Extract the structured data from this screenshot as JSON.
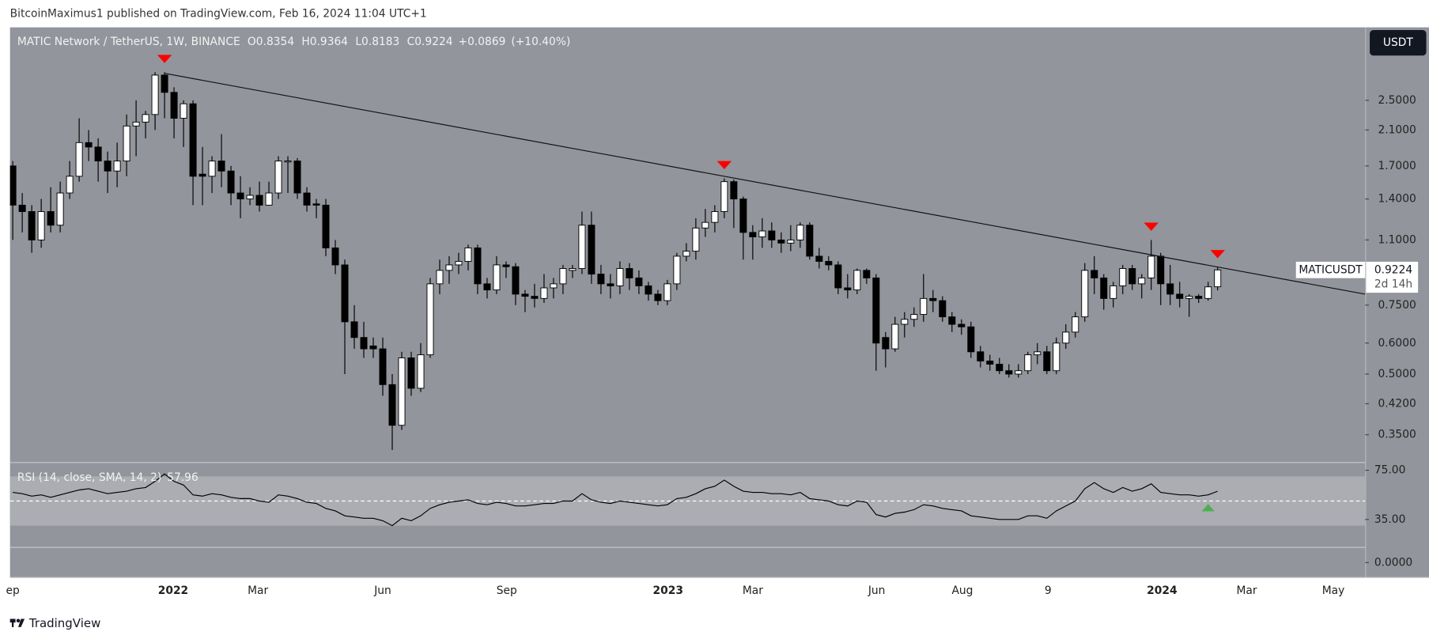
{
  "header": {
    "text": "BitcoinMaximus1 published on TradingView.com, Feb 16, 2024 11:04 UTC+1"
  },
  "chart_data": {
    "type": "candlestick",
    "title": "MATIC Network / TetherUS, 1W, BINANCE",
    "ohlc_labels": [
      "O",
      "H",
      "L",
      "C"
    ],
    "change": "+0.0869",
    "change_pct": "(+10.40%)",
    "currency_button": "USDT",
    "symbol_label": "MATICUSDT",
    "countdown": "2d 14h",
    "log_scale": true,
    "grid": false,
    "ylim": [
      0.298,
      3.84
    ],
    "yticks": [
      {
        "value": 2.5,
        "label": "2.5000"
      },
      {
        "value": 2.1,
        "label": "2.1000"
      },
      {
        "value": 1.7,
        "label": "1.7000"
      },
      {
        "value": 1.4,
        "label": "1.4000"
      },
      {
        "value": 1.1,
        "label": "1.1000"
      },
      {
        "value": 0.75,
        "label": "0.7500"
      },
      {
        "value": 0.6,
        "label": "0.6000"
      },
      {
        "value": 0.5,
        "label": "0.5000"
      },
      {
        "value": 0.42,
        "label": "0.4200"
      },
      {
        "value": 0.35,
        "label": "0.3500"
      }
    ],
    "x_labels": [
      "ep",
      "2022",
      "Mar",
      "Jun",
      "Sep",
      "2023",
      "Mar",
      "Jun",
      "Aug",
      "9",
      "2024",
      "Mar",
      "May"
    ],
    "up_color": "#ffffff",
    "down_color": "#000000",
    "candles": [
      [
        1.7,
        1.75,
        1.1,
        1.35
      ],
      [
        1.35,
        1.45,
        1.15,
        1.3
      ],
      [
        1.3,
        1.35,
        1.02,
        1.1
      ],
      [
        1.1,
        1.4,
        1.05,
        1.3
      ],
      [
        1.3,
        1.5,
        1.15,
        1.2
      ],
      [
        1.2,
        1.55,
        1.15,
        1.45
      ],
      [
        1.45,
        1.75,
        1.4,
        1.6
      ],
      [
        1.6,
        2.25,
        1.55,
        1.95
      ],
      [
        1.95,
        2.1,
        1.75,
        1.9
      ],
      [
        1.9,
        2.0,
        1.55,
        1.75
      ],
      [
        1.75,
        1.85,
        1.45,
        1.65
      ],
      [
        1.65,
        1.95,
        1.5,
        1.75
      ],
      [
        1.75,
        2.3,
        1.6,
        2.15
      ],
      [
        2.15,
        2.5,
        1.8,
        2.2
      ],
      [
        2.2,
        2.35,
        2.0,
        2.3
      ],
      [
        2.3,
        2.95,
        2.1,
        2.9
      ],
      [
        2.9,
        2.95,
        2.25,
        2.62
      ],
      [
        2.62,
        2.7,
        2.0,
        2.25
      ],
      [
        2.25,
        2.5,
        1.9,
        2.45
      ],
      [
        2.45,
        2.5,
        1.35,
        1.6
      ],
      [
        1.62,
        1.9,
        1.35,
        1.6
      ],
      [
        1.6,
        1.8,
        1.45,
        1.75
      ],
      [
        1.75,
        2.05,
        1.5,
        1.65
      ],
      [
        1.65,
        1.7,
        1.35,
        1.45
      ],
      [
        1.45,
        1.6,
        1.25,
        1.4
      ],
      [
        1.4,
        1.5,
        1.35,
        1.43
      ],
      [
        1.43,
        1.55,
        1.3,
        1.35
      ],
      [
        1.35,
        1.55,
        1.35,
        1.45
      ],
      [
        1.45,
        1.8,
        1.4,
        1.75
      ],
      [
        1.74,
        1.8,
        1.45,
        1.75
      ],
      [
        1.75,
        1.78,
        1.4,
        1.45
      ],
      [
        1.45,
        1.5,
        1.3,
        1.35
      ],
      [
        1.36,
        1.4,
        1.25,
        1.35
      ],
      [
        1.35,
        1.4,
        1.0,
        1.05
      ],
      [
        1.05,
        1.1,
        0.9,
        0.95
      ],
      [
        0.95,
        0.98,
        0.5,
        0.68
      ],
      [
        0.68,
        0.75,
        0.58,
        0.62
      ],
      [
        0.62,
        0.68,
        0.55,
        0.58
      ],
      [
        0.59,
        0.62,
        0.55,
        0.58
      ],
      [
        0.58,
        0.62,
        0.44,
        0.47
      ],
      [
        0.47,
        0.5,
        0.32,
        0.37
      ],
      [
        0.37,
        0.57,
        0.36,
        0.55
      ],
      [
        0.55,
        0.57,
        0.44,
        0.46
      ],
      [
        0.46,
        0.6,
        0.45,
        0.56
      ],
      [
        0.56,
        0.88,
        0.55,
        0.85
      ],
      [
        0.85,
        0.98,
        0.8,
        0.92
      ],
      [
        0.92,
        1.0,
        0.85,
        0.95
      ],
      [
        0.95,
        1.02,
        0.9,
        0.97
      ],
      [
        0.97,
        1.07,
        0.92,
        1.05
      ],
      [
        1.05,
        1.07,
        0.8,
        0.85
      ],
      [
        0.85,
        0.88,
        0.78,
        0.82
      ],
      [
        0.82,
        1.0,
        0.8,
        0.95
      ],
      [
        0.95,
        0.97,
        0.88,
        0.94
      ],
      [
        0.94,
        0.96,
        0.75,
        0.8
      ],
      [
        0.8,
        0.82,
        0.72,
        0.79
      ],
      [
        0.79,
        0.85,
        0.74,
        0.78
      ],
      [
        0.78,
        0.9,
        0.76,
        0.83
      ],
      [
        0.83,
        0.88,
        0.78,
        0.85
      ],
      [
        0.85,
        0.95,
        0.8,
        0.93
      ],
      [
        0.92,
        0.95,
        0.88,
        0.93
      ],
      [
        0.93,
        1.3,
        0.9,
        1.2
      ],
      [
        1.2,
        1.3,
        0.85,
        0.9
      ],
      [
        0.9,
        0.95,
        0.8,
        0.85
      ],
      [
        0.85,
        0.9,
        0.78,
        0.84
      ],
      [
        0.84,
        0.97,
        0.8,
        0.93
      ],
      [
        0.93,
        0.96,
        0.82,
        0.88
      ],
      [
        0.88,
        0.92,
        0.8,
        0.84
      ],
      [
        0.84,
        0.86,
        0.77,
        0.8
      ],
      [
        0.8,
        0.82,
        0.75,
        0.77
      ],
      [
        0.77,
        0.87,
        0.75,
        0.85
      ],
      [
        0.85,
        1.02,
        0.82,
        1.0
      ],
      [
        1.0,
        1.08,
        0.97,
        1.03
      ],
      [
        1.03,
        1.25,
        0.98,
        1.18
      ],
      [
        1.18,
        1.32,
        1.12,
        1.22
      ],
      [
        1.22,
        1.35,
        1.15,
        1.3
      ],
      [
        1.3,
        1.58,
        1.25,
        1.55
      ],
      [
        1.55,
        1.57,
        1.18,
        1.4
      ],
      [
        1.4,
        1.42,
        0.98,
        1.15
      ],
      [
        1.15,
        1.2,
        0.98,
        1.12
      ],
      [
        1.12,
        1.25,
        1.05,
        1.16
      ],
      [
        1.16,
        1.22,
        1.05,
        1.1
      ],
      [
        1.1,
        1.15,
        1.02,
        1.08
      ],
      [
        1.08,
        1.2,
        1.03,
        1.1
      ],
      [
        1.1,
        1.22,
        1.05,
        1.2
      ],
      [
        1.2,
        1.22,
        0.98,
        1.0
      ],
      [
        1.0,
        1.05,
        0.93,
        0.97
      ],
      [
        0.97,
        1.0,
        0.92,
        0.95
      ],
      [
        0.95,
        0.97,
        0.8,
        0.83
      ],
      [
        0.83,
        0.9,
        0.78,
        0.82
      ],
      [
        0.82,
        0.93,
        0.8,
        0.92
      ],
      [
        0.92,
        0.93,
        0.85,
        0.88
      ],
      [
        0.88,
        0.9,
        0.51,
        0.6
      ],
      [
        0.62,
        0.64,
        0.52,
        0.58
      ],
      [
        0.58,
        0.7,
        0.57,
        0.67
      ],
      [
        0.67,
        0.72,
        0.62,
        0.69
      ],
      [
        0.69,
        0.74,
        0.66,
        0.71
      ],
      [
        0.71,
        0.9,
        0.68,
        0.78
      ],
      [
        0.78,
        0.82,
        0.72,
        0.77
      ],
      [
        0.77,
        0.79,
        0.68,
        0.7
      ],
      [
        0.7,
        0.72,
        0.64,
        0.67
      ],
      [
        0.67,
        0.69,
        0.63,
        0.66
      ],
      [
        0.66,
        0.68,
        0.55,
        0.57
      ],
      [
        0.57,
        0.59,
        0.52,
        0.54
      ],
      [
        0.54,
        0.56,
        0.51,
        0.53
      ],
      [
        0.53,
        0.55,
        0.5,
        0.51
      ],
      [
        0.51,
        0.53,
        0.49,
        0.5
      ],
      [
        0.5,
        0.53,
        0.49,
        0.51
      ],
      [
        0.51,
        0.57,
        0.5,
        0.56
      ],
      [
        0.56,
        0.6,
        0.53,
        0.57
      ],
      [
        0.57,
        0.59,
        0.5,
        0.51
      ],
      [
        0.51,
        0.62,
        0.5,
        0.6
      ],
      [
        0.6,
        0.67,
        0.58,
        0.64
      ],
      [
        0.64,
        0.72,
        0.62,
        0.7
      ],
      [
        0.7,
        0.96,
        0.68,
        0.92
      ],
      [
        0.92,
        1.0,
        0.8,
        0.88
      ],
      [
        0.88,
        0.9,
        0.73,
        0.78
      ],
      [
        0.78,
        0.86,
        0.74,
        0.84
      ],
      [
        0.84,
        0.95,
        0.8,
        0.93
      ],
      [
        0.93,
        0.95,
        0.82,
        0.85
      ],
      [
        0.85,
        0.9,
        0.78,
        0.88
      ],
      [
        0.88,
        1.1,
        0.82,
        1.0
      ],
      [
        1.0,
        1.02,
        0.75,
        0.85
      ],
      [
        0.85,
        0.95,
        0.75,
        0.8
      ],
      [
        0.8,
        0.86,
        0.74,
        0.78
      ],
      [
        0.78,
        0.8,
        0.7,
        0.79
      ],
      [
        0.79,
        0.8,
        0.76,
        0.78
      ],
      [
        0.78,
        0.86,
        0.77,
        0.835
      ],
      [
        0.8354,
        0.9364,
        0.8183,
        0.9224
      ]
    ],
    "peaks": [
      16,
      75,
      120,
      127
    ],
    "peak_color": "#ff0000",
    "trendline": [
      2.93,
      0.8
    ],
    "rsi": {
      "label": "RSI (14, close, SMA, 14, 2)",
      "last_label": "57.96",
      "ylim": [
        -11.7,
        80.9
      ],
      "yticks": [
        {
          "value": 75,
          "label": "75.00"
        },
        {
          "value": 35,
          "label": "35.00"
        },
        {
          "value": 0,
          "label": "0.0000"
        }
      ],
      "band": [
        70,
        30
      ],
      "midline": 50,
      "signal_index": 126,
      "signal_color": "#4caf50",
      "values": [
        57,
        56,
        54,
        55,
        53,
        55,
        57,
        59,
        60,
        58,
        56,
        57,
        58,
        60,
        61,
        66,
        72,
        66,
        63,
        55,
        54,
        56,
        55,
        53,
        52,
        52,
        50,
        49,
        55,
        54,
        52,
        49,
        48,
        44,
        42,
        38,
        37,
        36,
        36,
        34,
        30,
        36,
        34,
        38,
        44,
        47,
        49,
        50,
        51,
        48,
        47,
        49,
        48,
        46,
        46,
        47,
        48,
        48,
        50,
        50,
        56,
        51,
        49,
        48,
        50,
        49,
        48,
        47,
        46,
        47,
        52,
        53,
        56,
        60,
        62,
        67,
        62,
        58,
        57,
        57,
        56,
        56,
        55,
        57,
        52,
        51,
        50,
        47,
        46,
        50,
        49,
        39,
        37,
        40,
        41,
        43,
        47,
        46,
        44,
        43,
        42,
        38,
        37,
        36,
        35,
        35,
        35,
        38,
        38,
        36,
        42,
        46,
        50,
        60,
        65,
        60,
        57,
        61,
        58,
        60,
        64,
        57,
        56,
        55,
        55,
        54,
        55,
        57.96
      ]
    }
  },
  "footer": {
    "brand": "TradingView"
  }
}
